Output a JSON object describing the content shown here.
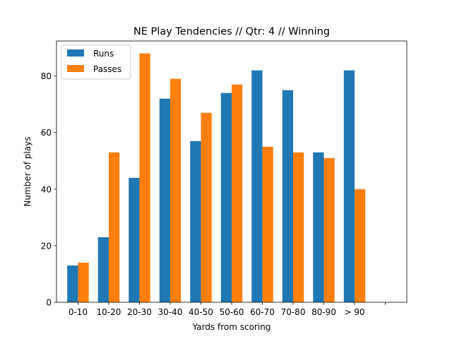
{
  "chart_data": {
    "type": "bar",
    "title": "NE Play Tendencies // Qtr: 4 // Winning",
    "xlabel": "Yards from scoring",
    "ylabel": "Number of plays",
    "categories": [
      "0-10",
      "10-20",
      "20-30",
      "30-40",
      "40-50",
      "50-60",
      "60-70",
      "70-80",
      "80-90",
      "> 90"
    ],
    "extra_tick_label": "",
    "series": [
      {
        "name": "Runs",
        "color": "#1f77b4",
        "values": [
          13,
          23,
          44,
          72,
          57,
          74,
          82,
          75,
          53,
          82
        ]
      },
      {
        "name": "Passes",
        "color": "#ff7f0e",
        "values": [
          14,
          53,
          88,
          79,
          67,
          77,
          55,
          53,
          51,
          40
        ]
      }
    ],
    "ylim": [
      0,
      92.4
    ],
    "yticks": [
      0,
      20,
      40,
      60,
      80
    ],
    "legend_position": "top-left",
    "grid": false
  }
}
